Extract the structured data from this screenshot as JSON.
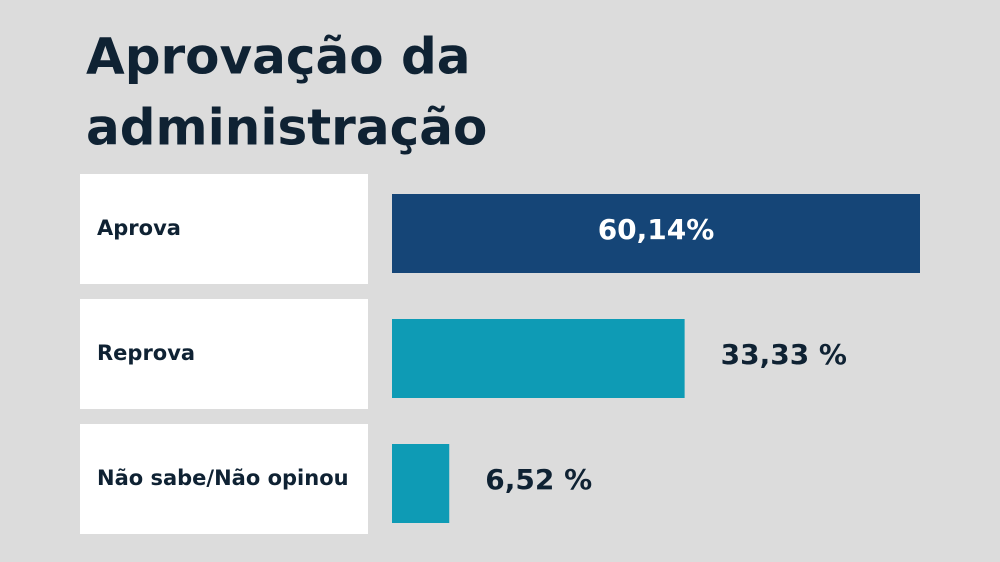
{
  "chart_data": {
    "type": "bar",
    "orientation": "horizontal",
    "title_lines": [
      "Aprovação da",
      "administração"
    ],
    "categories": [
      "Aprova",
      "Reprova",
      "Não sabe/Não opinou"
    ],
    "values": [
      60.14,
      33.33,
      6.52
    ],
    "value_labels": [
      "60,14%",
      "33,33 %",
      "6,52 %"
    ],
    "colors": [
      "#154577",
      "#0e9bb5",
      "#0e9bb5"
    ]
  }
}
